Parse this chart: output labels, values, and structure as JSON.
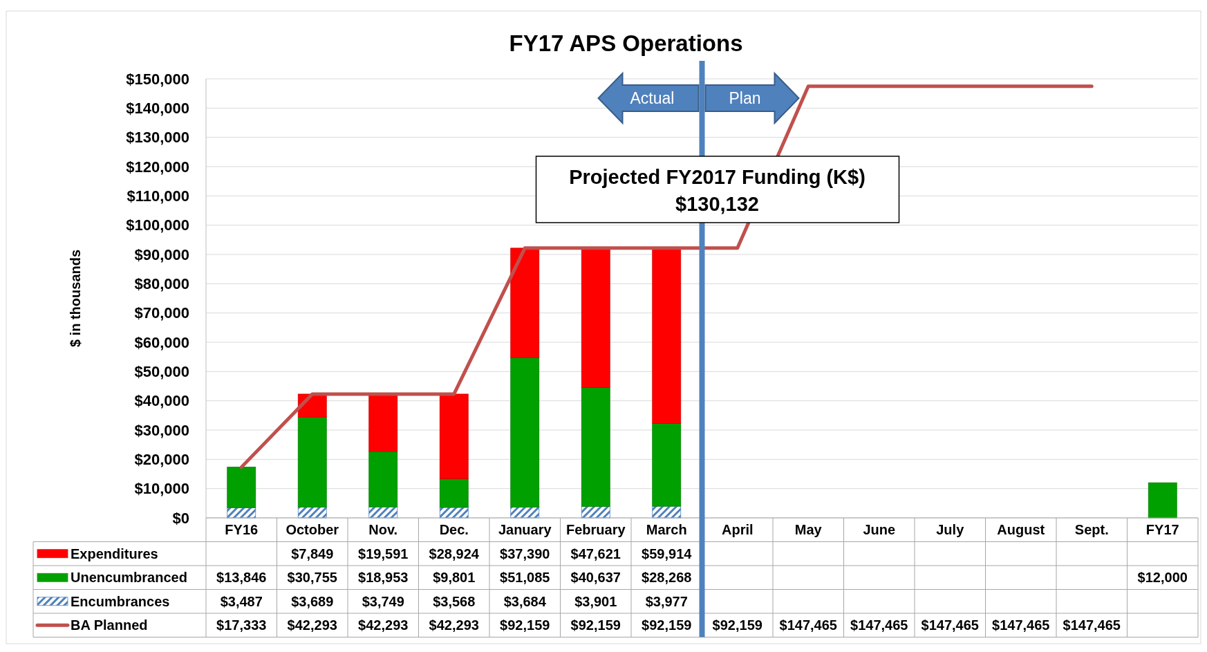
{
  "chart_data": {
    "type": "bar",
    "stacked": true,
    "title": "FY17 APS Operations",
    "ylabel": "$ in thousands",
    "categories": [
      "FY16",
      "October",
      "Nov.",
      "Dec.",
      "January",
      "February",
      "March",
      "April",
      "May",
      "June",
      "July",
      "August",
      "Sept.",
      "FY17"
    ],
    "series": [
      {
        "name": "Encumbrances",
        "color": "#4f81bd",
        "values": [
          3487,
          3689,
          3749,
          3568,
          3684,
          3901,
          3977,
          null,
          null,
          null,
          null,
          null,
          null,
          null
        ],
        "value_labels": [
          "$3,487",
          "$3,689",
          "$3,749",
          "$3,568",
          "$3,684",
          "$3,901",
          "$3,977",
          null,
          null,
          null,
          null,
          null,
          null,
          null
        ]
      },
      {
        "name": "Unencumbranced",
        "color": "#00a000",
        "values": [
          13846,
          30755,
          18953,
          9801,
          51085,
          40637,
          28268,
          null,
          null,
          null,
          null,
          null,
          null,
          12000
        ],
        "value_labels": [
          "$13,846",
          "$30,755",
          "$18,953",
          "$9,801",
          "$51,085",
          "$40,637",
          "$28,268",
          null,
          null,
          null,
          null,
          null,
          null,
          "$12,000"
        ]
      },
      {
        "name": "Expenditures",
        "color": "#ff0000",
        "values": [
          null,
          7849,
          19591,
          28924,
          37390,
          47621,
          59914,
          null,
          null,
          null,
          null,
          null,
          null,
          null
        ],
        "value_labels": [
          null,
          "$7,849",
          "$19,591",
          "$28,924",
          "$37,390",
          "$47,621",
          "$59,914",
          null,
          null,
          null,
          null,
          null,
          null,
          null
        ]
      },
      {
        "name": "BA Planned",
        "type": "line",
        "color": "#c0504d",
        "values": [
          17333,
          42293,
          42293,
          42293,
          92159,
          92159,
          92159,
          92159,
          147465,
          147465,
          147465,
          147465,
          147465,
          null
        ],
        "value_labels": [
          "$17,333",
          "$42,293",
          "$42,293",
          "$42,293",
          "$92,159",
          "$92,159",
          "$92,159",
          "$92,159",
          "$147,465",
          "$147,465",
          "$147,465",
          "$147,465",
          "$147,465",
          null
        ]
      }
    ],
    "ylim": [
      0,
      150000
    ],
    "yticks": [
      {
        "value": 0,
        "label": "$0"
      },
      {
        "value": 10000,
        "label": "$10,000"
      },
      {
        "value": 20000,
        "label": "$20,000"
      },
      {
        "value": 30000,
        "label": "$30,000"
      },
      {
        "value": 40000,
        "label": "$40,000"
      },
      {
        "value": 50000,
        "label": "$50,000"
      },
      {
        "value": 60000,
        "label": "$60,000"
      },
      {
        "value": 70000,
        "label": "$70,000"
      },
      {
        "value": 80000,
        "label": "$80,000"
      },
      {
        "value": 90000,
        "label": "$90,000"
      },
      {
        "value": 100000,
        "label": "$100,000"
      },
      {
        "value": 110000,
        "label": "$110,000"
      },
      {
        "value": 120000,
        "label": "$120,000"
      },
      {
        "value": 130000,
        "label": "$130,000"
      },
      {
        "value": 140000,
        "label": "$140,000"
      },
      {
        "value": 150000,
        "label": "$150,000"
      }
    ],
    "grid": "y",
    "legend": "bottom",
    "ref_lines": [
      {
        "axis": "x",
        "value": "April",
        "color": "#4f81bd"
      }
    ],
    "annotations": [
      "Actual",
      "Plan",
      "Projected FY2017 Funding (K$)",
      "$130,132"
    ]
  }
}
